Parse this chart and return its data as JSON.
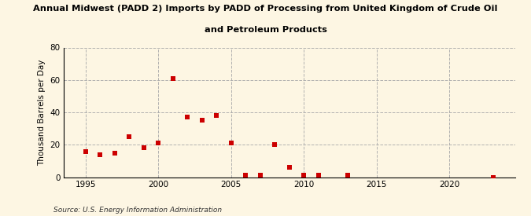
{
  "title_line1": "Annual Midwest (PADD 2) Imports by PADD of Processing from United Kingdom of Crude Oil",
  "title_line2": "and Petroleum Products",
  "ylabel": "Thousand Barrels per Day",
  "source": "Source: U.S. Energy Information Administration",
  "background_color": "#fdf6e3",
  "plot_background_color": "#fdf6e3",
  "marker_color": "#cc0000",
  "xlim": [
    1993.5,
    2024.5
  ],
  "ylim": [
    0,
    80
  ],
  "yticks": [
    0,
    20,
    40,
    60,
    80
  ],
  "xticks": [
    1995,
    2000,
    2005,
    2010,
    2015,
    2020
  ],
  "years": [
    1995,
    1996,
    1997,
    1998,
    1999,
    2000,
    2001,
    2002,
    2003,
    2004,
    2005,
    2006,
    2007,
    2008,
    2009,
    2010,
    2011,
    2013,
    2023
  ],
  "values": [
    16,
    14,
    15,
    25,
    18,
    21,
    61,
    37,
    35,
    38,
    21,
    1,
    1,
    20,
    6,
    1,
    1,
    1,
    0
  ]
}
